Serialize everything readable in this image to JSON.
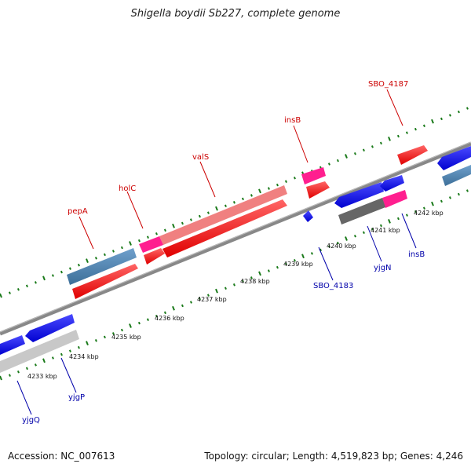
{
  "title": "Shigella boydii Sb227, complete genome",
  "accession": "Accession: NC_007613",
  "summary": "Topology: circular; Length: 4,519,823 bp; Genes: 4,246",
  "colors": {
    "gene_forward": "#ff0000",
    "gene_reverse": "#0000ee",
    "rna": "#ff1493",
    "feature_blue": "#4682b4",
    "feature_grey": "#696969",
    "tick": "#1a7a1a",
    "label_forward": "#cc0000",
    "label_reverse": "#0000aa"
  },
  "scale_labels": [
    "4233 kbp",
    "4234 kbp",
    "4235 kbp",
    "4236 kbp",
    "4237 kbp",
    "4238 kbp",
    "4239 kbp",
    "4240 kbp",
    "4241 kbp",
    "4242 kbp"
  ],
  "gene_labels": {
    "pepA": "pepA",
    "holC": "holC",
    "valS": "valS",
    "insB_top": "insB",
    "SBO_4187": "SBO_4187",
    "yjgQ": "yjgQ",
    "yjgP": "yjgP",
    "SBO_4183": "SBO_4183",
    "yjgN": "yjgN",
    "insB_bottom": "insB"
  }
}
